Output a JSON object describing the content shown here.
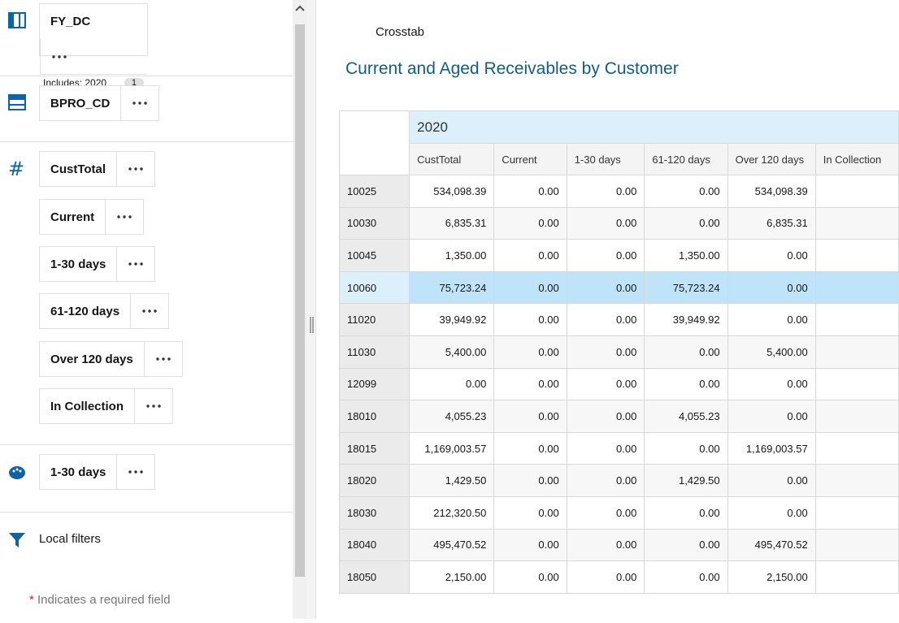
{
  "left_panel": {
    "columns_section": {
      "chips": [
        {
          "label": "FY_DC",
          "includes": "Includes: 2020",
          "badge": "1"
        }
      ]
    },
    "rows_section": {
      "chips": [
        {
          "label": "BPRO_CD"
        }
      ]
    },
    "measures_section": {
      "chips": [
        {
          "label": "CustTotal"
        },
        {
          "label": "Current"
        },
        {
          "label": "1-30 days"
        },
        {
          "label": "61-120 days"
        },
        {
          "label": "Over 120 days"
        },
        {
          "label": "In Collection"
        }
      ]
    },
    "color_section": {
      "chips": [
        {
          "label": "1-30 days"
        }
      ]
    },
    "local_filters": "Local filters",
    "required_note": {
      "star": "*",
      "text": "Indicates a required field"
    }
  },
  "report": {
    "tab": "Crosstab",
    "title": "Current and Aged Receivables by Customer",
    "table": {
      "year": "2020",
      "columns": [
        "CustTotal",
        "Current",
        "1-30 days",
        "61-120 days",
        "Over 120 days",
        "In Collection"
      ],
      "rows": [
        [
          "10025",
          "534,098.39",
          "0.00",
          "0.00",
          "0.00",
          "534,098.39"
        ],
        [
          "10030",
          "6,835.31",
          "0.00",
          "0.00",
          "0.00",
          "6,835.31"
        ],
        [
          "10045",
          "1,350.00",
          "0.00",
          "0.00",
          "1,350.00",
          "0.00"
        ],
        [
          "10060",
          "75,723.24",
          "0.00",
          "0.00",
          "75,723.24",
          "0.00"
        ],
        [
          "11020",
          "39,949.92",
          "0.00",
          "0.00",
          "39,949.92",
          "0.00"
        ],
        [
          "11030",
          "5,400.00",
          "0.00",
          "0.00",
          "0.00",
          "5,400.00"
        ],
        [
          "12099",
          "0.00",
          "0.00",
          "0.00",
          "0.00",
          "0.00"
        ],
        [
          "18010",
          "4,055.23",
          "0.00",
          "0.00",
          "4,055.23",
          "0.00"
        ],
        [
          "18015",
          "1,169,003.57",
          "0.00",
          "0.00",
          "0.00",
          "1,169,003.57"
        ],
        [
          "18020",
          "1,429.50",
          "0.00",
          "0.00",
          "1,429.50",
          "0.00"
        ],
        [
          "18030",
          "212,320.50",
          "0.00",
          "0.00",
          "0.00",
          "0.00"
        ],
        [
          "18040",
          "495,470.52",
          "0.00",
          "0.00",
          "0.00",
          "495,470.52"
        ],
        [
          "18050",
          "2,150.00",
          "0.00",
          "0.00",
          "0.00",
          "2,150.00"
        ]
      ]
    }
  }
}
